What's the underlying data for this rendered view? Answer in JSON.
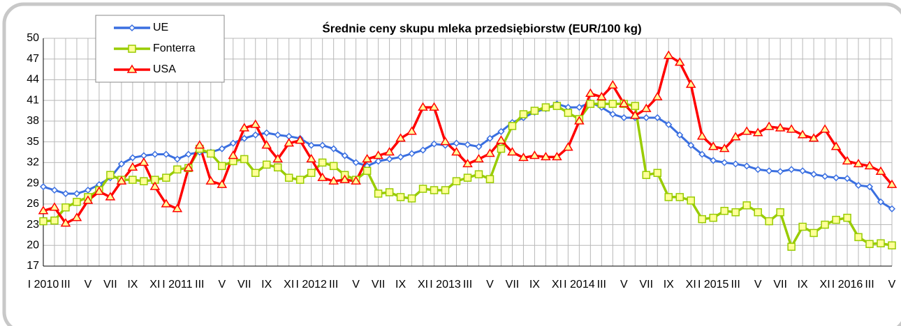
{
  "chart_data": {
    "type": "line",
    "title": "Średnie ceny skupu mleka przedsiębiorstw (EUR/100 kg)",
    "categories": [
      "I 2010",
      null,
      "III",
      null,
      "V",
      null,
      "VII",
      null,
      "IX",
      null,
      "XI",
      null,
      "I 2011",
      null,
      "III",
      null,
      "V",
      null,
      "VII",
      null,
      "IX",
      null,
      "XI",
      null,
      "I 2012",
      null,
      "III",
      null,
      "V",
      null,
      "VII",
      null,
      "IX",
      null,
      "XI",
      null,
      "I 2013",
      null,
      "III",
      null,
      "V",
      null,
      "VII",
      null,
      "IX",
      null,
      "XI",
      null,
      "I 2014",
      null,
      "III",
      null,
      "V",
      null,
      "VII",
      null,
      "IX",
      null,
      "XI",
      null,
      "I 2015",
      null,
      "III",
      null,
      "V",
      null,
      "VII",
      null,
      "IX",
      null,
      "XI",
      null,
      "I 2016",
      null,
      "III",
      null,
      "V"
    ],
    "series": [
      {
        "name": "UE",
        "color": "#3a6fe0",
        "marker": "diamond",
        "values": [
          28.5,
          28,
          27.5,
          27.5,
          28,
          28.8,
          29.8,
          31.8,
          32.7,
          33,
          33.2,
          33.2,
          32.5,
          33.2,
          33.5,
          33.5,
          34,
          34.8,
          35.5,
          36,
          36.3,
          36,
          35.8,
          35.5,
          34.5,
          34.5,
          34,
          33,
          32,
          31.5,
          32.2,
          32.5,
          32.8,
          33.3,
          33.8,
          34.7,
          34.5,
          34.8,
          34.6,
          34.3,
          35.5,
          36.5,
          37.8,
          38.5,
          39.3,
          39.8,
          40.5,
          40,
          40,
          40.7,
          40,
          39,
          38.5,
          38.5,
          38.5,
          38.5,
          37.5,
          36,
          34.5,
          33.2,
          32.3,
          32,
          31.8,
          31.5,
          31,
          30.8,
          30.7,
          31,
          30.8,
          30.3,
          30,
          29.8,
          29.7,
          28.7,
          28.5,
          26.3,
          25.3
        ]
      },
      {
        "name": "Fonterra",
        "color": "#99cc00",
        "marker": "square",
        "values": [
          23.5,
          23.6,
          25.5,
          26.3,
          27,
          28,
          30.2,
          29.5,
          29.5,
          29.3,
          29.5,
          29.8,
          31,
          31.2,
          34,
          33.3,
          31.5,
          32.2,
          32.5,
          30.5,
          31.7,
          31.3,
          29.8,
          29.5,
          30.5,
          32,
          31.5,
          30.2,
          29.5,
          30.8,
          27.5,
          27.7,
          27,
          26.8,
          28.2,
          28,
          28,
          29.3,
          29.8,
          30.3,
          29.6,
          34,
          37.3,
          39,
          39.5,
          40,
          40.2,
          39.2,
          38.3,
          40.5,
          40.5,
          40.5,
          40.5,
          40.2,
          30.2,
          30.5,
          27,
          27,
          26.5,
          23.8,
          24,
          25,
          24.8,
          25.8,
          24.8,
          23.5,
          24.8,
          19.8,
          22.7,
          21.8,
          23,
          23.7,
          24,
          21.2,
          20.2,
          20.3,
          20
        ]
      },
      {
        "name": "USA",
        "color": "#ff0000",
        "marker": "triangle",
        "values": [
          25,
          25.5,
          23.2,
          24,
          26.5,
          27.8,
          27,
          29.3,
          31.3,
          32,
          28.5,
          26,
          25.3,
          31.2,
          34.5,
          29.3,
          28.8,
          33,
          37,
          37.5,
          34.5,
          32.5,
          34.8,
          35.2,
          32.5,
          29.8,
          29.3,
          29.5,
          29.3,
          32.5,
          33,
          33.5,
          35.5,
          36.5,
          40,
          40,
          35,
          33.5,
          31.8,
          32.5,
          33.3,
          35.2,
          33.5,
          32.7,
          33,
          32.8,
          32.8,
          34.2,
          38,
          42,
          41.5,
          43.2,
          40.5,
          38.8,
          39.8,
          41.5,
          47.5,
          46.5,
          43.3,
          35.8,
          34.3,
          34,
          35.7,
          36.5,
          36.3,
          37.2,
          37,
          36.8,
          36,
          35.5,
          36.8,
          34.3,
          32.2,
          31.8,
          31.5,
          30.7,
          28.8
        ]
      }
    ],
    "ylim": [
      17,
      50
    ],
    "yticks": [
      17,
      20,
      23,
      26,
      29,
      32,
      35,
      38,
      41,
      44,
      47,
      50
    ],
    "grid": true,
    "legend": "top-left"
  }
}
